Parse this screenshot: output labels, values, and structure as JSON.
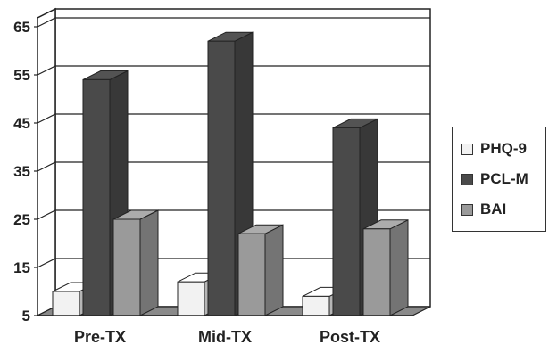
{
  "chart_data": {
    "type": "bar",
    "categories": [
      "Pre-TX",
      "Mid-TX",
      "Post-TX"
    ],
    "series": [
      {
        "name": "PHQ-9",
        "values": [
          10,
          12,
          9
        ],
        "color": "#f2f2f2"
      },
      {
        "name": "PCL-M",
        "values": [
          54,
          62,
          44
        ],
        "color": "#4a4a4a"
      },
      {
        "name": "BAI",
        "values": [
          25,
          22,
          23
        ],
        "color": "#9a9a9a"
      }
    ],
    "yticks": [
      5,
      15,
      25,
      35,
      45,
      55,
      65
    ],
    "ylim": [
      5,
      70
    ],
    "grid": true,
    "legend_position": "right",
    "title": "",
    "xlabel": "",
    "ylabel": ""
  }
}
